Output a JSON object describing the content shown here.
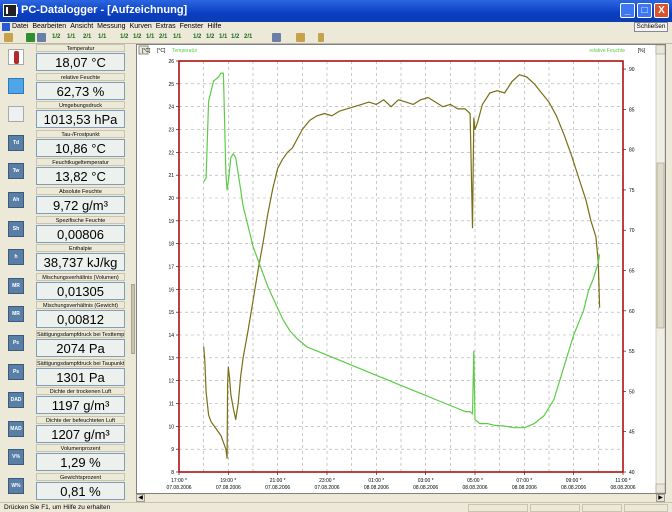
{
  "window": {
    "title": "PC-Datalogger - [Aufzeichnung]",
    "minimize_label": "_",
    "maximize_label": "□",
    "close_label": "X"
  },
  "menu": {
    "items": [
      "Datei",
      "Bearbeiten",
      "Ansicht",
      "Messung",
      "Kurven",
      "Extras",
      "Fenster",
      "Hilfe"
    ],
    "close_button": "Schließen"
  },
  "toolbar": {
    "zoom_labels": [
      "1/2",
      "1/1",
      "2/1",
      "1/1",
      "1/2",
      "1/2",
      "1/1",
      "2/1",
      "1/1",
      "1/2",
      "1/2",
      "1/1",
      "1/2",
      "2/1"
    ]
  },
  "sensors": [
    {
      "label": "Temperatur",
      "value": "18,07 °C",
      "icon": "thermometer-icon"
    },
    {
      "label": "relative Feuchte",
      "value": "62,73 %",
      "icon": "humidity-icon"
    },
    {
      "label": "Umgebungsdruck",
      "value": "1013,53 hPa",
      "icon": "barometer-icon"
    },
    {
      "label": "Tau-/Frostpunkt",
      "value": "10,86 °C",
      "icon": "dewpoint-icon"
    },
    {
      "label": "Feuchtkugeltemperatur",
      "value": "13,82 °C",
      "icon": "wetbulb-icon"
    },
    {
      "label": "Absolute Feuchte",
      "value": "9,72 g/m³",
      "icon": "absolute-humidity-icon"
    },
    {
      "label": "Spezifische Feuchte",
      "value": "0,00806",
      "icon": "specific-humidity-icon"
    },
    {
      "label": "Enthalpie",
      "value": "38,737 kJ/kg",
      "icon": "enthalpy-icon"
    },
    {
      "label": "Mischungsverhältnis (Volumen)",
      "value": "0,01305",
      "icon": "mixing-volume-icon"
    },
    {
      "label": "Mischungsverhältnis (Gewicht)",
      "value": "0,00812",
      "icon": "mixing-weight-icon"
    },
    {
      "label": "Sättigungsdampfdruck bei Testtemperatur",
      "value": "2074 Pa",
      "icon": "saturation-pressure-icon"
    },
    {
      "label": "Sättigungsdampfdruck bei Taupunkttemp.",
      "value": "1301 Pa",
      "icon": "saturation-dewpoint-icon"
    },
    {
      "label": "Dichte der trockenen Luft",
      "value": "1197 g/m³",
      "icon": "dry-air-density-icon"
    },
    {
      "label": "Dichte der befeuchteten Luft",
      "value": "1207 g/m³",
      "icon": "moist-air-density-icon"
    },
    {
      "label": "Volumenprozent",
      "value": "1,29 %",
      "icon": "volume-percent-icon"
    },
    {
      "label": "Gewichtsprozent",
      "value": "0,81 %",
      "icon": "weight-percent-icon"
    }
  ],
  "sensor_icon_text": [
    "",
    "",
    "",
    "Td",
    "Tw",
    "Ah",
    "Sh",
    "h",
    "MR",
    "MR",
    "Ps",
    "Ps",
    "DAD",
    "MAD",
    "V%",
    "W%"
  ],
  "status": {
    "text": "Drücken Sie F1, um Hilfe zu erhalten"
  },
  "colors": {
    "temperature": "#7a6e16",
    "humidity": "#5ccc46",
    "frame": "#b01010",
    "grid": "#a8a8a8",
    "title_blue": "#0a3fc2"
  },
  "chart_data": {
    "type": "line",
    "left_axis_label": "[°C]",
    "left_series_label": "Temperatur",
    "right_series_label": "relative Feuchte",
    "right_axis_label": "[%]",
    "left_ylim": [
      8,
      26
    ],
    "right_ylim": [
      40,
      91
    ],
    "left_ticks": [
      "8",
      "9",
      "10",
      "11",
      "12",
      "13",
      "14",
      "15",
      "16",
      "17",
      "18",
      "19",
      "20",
      "21",
      "22",
      "23",
      "24",
      "25",
      "26"
    ],
    "right_ticks": [
      "40",
      "45",
      "50",
      "55",
      "60",
      "65",
      "70",
      "75",
      "80",
      "85",
      "90"
    ],
    "x_ticks": [
      {
        "time": "17:00 *",
        "date": "07.08.2006"
      },
      {
        "time": "19:00 *",
        "date": "07.08.2006"
      },
      {
        "time": "21:00 *",
        "date": "07.08.2006"
      },
      {
        "time": "23:00 *",
        "date": "07.08.2006"
      },
      {
        "time": "01:00 *",
        "date": "08.08.2006"
      },
      {
        "time": "03:00 *",
        "date": "08.08.2006"
      },
      {
        "time": "05:00 *",
        "date": "08.08.2006"
      },
      {
        "time": "07:00 *",
        "date": "08.08.2006"
      },
      {
        "time": "09:00 *",
        "date": "08.08.2006"
      },
      {
        "time": "11:00 *",
        "date": "08.08.2006"
      }
    ],
    "x_range_hours": [
      0,
      18
    ],
    "series": [
      {
        "name": "Temperatur",
        "axis": "left",
        "x": [
          1.0,
          1.05,
          1.1,
          1.2,
          1.3,
          1.5,
          1.7,
          1.8,
          1.9,
          1.95,
          1.97,
          2.0,
          2.05,
          2.1,
          2.2,
          2.3,
          2.4,
          2.5,
          2.6,
          2.8,
          3.0,
          3.2,
          3.4,
          3.6,
          3.8,
          4.0,
          4.2,
          4.4,
          4.6,
          4.8,
          5.0,
          5.3,
          5.6,
          5.9,
          6.2,
          6.5,
          6.8,
          7.1,
          7.4,
          7.7,
          8.0,
          8.3,
          8.6,
          8.9,
          9.2,
          9.5,
          9.8,
          10.1,
          10.4,
          10.7,
          11.0,
          11.3,
          11.6,
          11.8,
          11.9,
          11.95,
          12.0,
          12.1,
          12.3,
          12.6,
          12.9,
          13.2,
          13.5,
          13.8,
          14.1,
          14.4,
          14.7,
          15.0,
          15.3,
          15.6,
          15.9,
          16.2,
          16.5,
          16.7,
          16.9,
          17.0,
          17.05
        ],
        "y": [
          13.5,
          12.8,
          11.5,
          10.5,
          10.2,
          9.9,
          9.6,
          9.3,
          9.0,
          8.6,
          11.8,
          12.6,
          12.1,
          11.4,
          10.8,
          10.3,
          11.0,
          12.2,
          13.0,
          14.2,
          15.5,
          16.8,
          18.0,
          19.3,
          20.4,
          21.3,
          21.7,
          22.0,
          22.2,
          22.6,
          23.0,
          23.4,
          23.6,
          23.7,
          23.6,
          23.8,
          23.9,
          24.0,
          24.1,
          24.2,
          24.1,
          24.3,
          24.0,
          24.3,
          24.2,
          24.1,
          24.3,
          24.4,
          24.2,
          24.0,
          24.1,
          23.9,
          23.9,
          23.7,
          18.7,
          23.5,
          23.0,
          23.3,
          24.1,
          24.6,
          24.7,
          24.6,
          25.1,
          25.4,
          25.3,
          25.0,
          24.6,
          24.2,
          23.6,
          22.8,
          21.9,
          20.9,
          19.9,
          19.0,
          18.3,
          17.2,
          15.2
        ]
      },
      {
        "name": "relative Feuchte",
        "axis": "right",
        "x": [
          1.0,
          1.1,
          1.2,
          1.4,
          1.6,
          1.7,
          1.8,
          1.9,
          1.95,
          2.0,
          2.05,
          2.1,
          2.2,
          2.3,
          2.4,
          2.5,
          2.6,
          2.8,
          3.0,
          3.3,
          3.6,
          3.9,
          4.2,
          4.5,
          4.8,
          5.2,
          5.6,
          6.0,
          6.4,
          6.8,
          7.2,
          7.6,
          8.0,
          8.4,
          8.8,
          9.2,
          9.6,
          10.0,
          10.4,
          10.8,
          11.2,
          11.6,
          11.8,
          11.9,
          11.95,
          12.0,
          12.2,
          12.5,
          12.8,
          13.2,
          13.6,
          14.0,
          14.4,
          14.8,
          15.2,
          15.6,
          16.0,
          16.4,
          16.6,
          16.8,
          17.0,
          17.05
        ],
        "y": [
          76.0,
          76.5,
          86.0,
          88.5,
          89.0,
          89.5,
          89.5,
          77.0,
          75.0,
          76.0,
          77.5,
          79.0,
          79.5,
          79.0,
          77.0,
          75.0,
          73.0,
          70.5,
          68.0,
          65.5,
          63.0,
          61.0,
          59.0,
          57.5,
          56.5,
          55.5,
          55.0,
          54.5,
          54.0,
          53.5,
          53.0,
          52.5,
          52.0,
          51.5,
          51.0,
          50.5,
          50.0,
          49.5,
          49.0,
          48.5,
          48.0,
          47.5,
          47.5,
          47.2,
          55.0,
          46.5,
          46.0,
          46.0,
          45.8,
          45.7,
          45.5,
          45.5,
          46.0,
          47.0,
          49.0,
          53.0,
          57.0,
          60.0,
          62.5,
          64.0,
          66.0,
          67.0
        ]
      }
    ]
  }
}
